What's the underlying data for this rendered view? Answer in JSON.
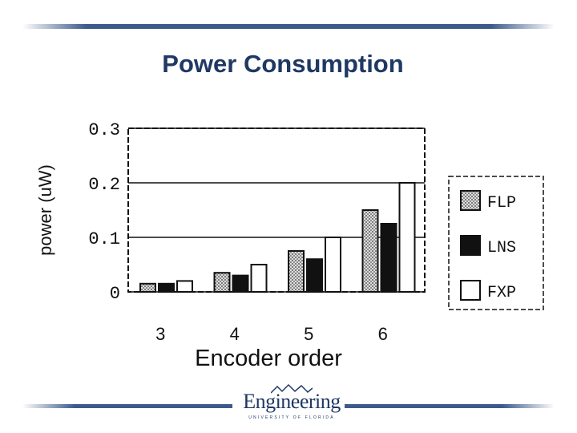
{
  "slide": {
    "title": "Power Consumption"
  },
  "chart_data": {
    "type": "bar",
    "title": "",
    "xlabel": "Encoder order",
    "ylabel": "power (uW)",
    "categories": [
      "3",
      "4",
      "5",
      "6"
    ],
    "ylim": [
      0,
      0.3
    ],
    "yticks": [
      "0",
      "0.1",
      "0.2",
      "0.3"
    ],
    "grid": true,
    "legend_position": "right",
    "series": [
      {
        "name": "FLP",
        "values": [
          0.015,
          0.035,
          0.075,
          0.15
        ]
      },
      {
        "name": "LNS",
        "values": [
          0.015,
          0.03,
          0.06,
          0.125
        ]
      },
      {
        "name": "FXP",
        "values": [
          0.02,
          0.05,
          0.1,
          0.2
        ]
      }
    ]
  },
  "logo": {
    "name": "Engineering",
    "subtitle": "UNIVERSITY OF FLORIDA",
    "mark": "GATOR"
  },
  "colors": {
    "accent": "#3c5a8c",
    "title": "#1f3864"
  }
}
